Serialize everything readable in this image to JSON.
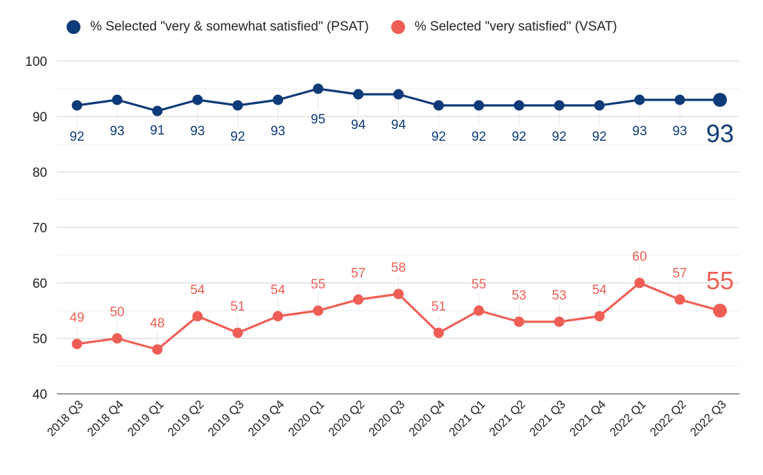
{
  "chart_data": {
    "type": "line",
    "categories": [
      "2018 Q3",
      "2018 Q4",
      "2019 Q1",
      "2019 Q2",
      "2019 Q3",
      "2019 Q4",
      "2020 Q1",
      "2020 Q2",
      "2020 Q3",
      "2020 Q4",
      "2021 Q1",
      "2021 Q2",
      "2021 Q3",
      "2021 Q4",
      "2022 Q1",
      "2022 Q2",
      "2022 Q3"
    ],
    "series": [
      {
        "name": "% Selected \"very & somewhat satisfied\" (PSAT)",
        "color": "#0d3a78",
        "values": [
          92,
          93,
          91,
          93,
          92,
          93,
          95,
          94,
          94,
          92,
          92,
          92,
          92,
          92,
          93,
          93,
          93
        ]
      },
      {
        "name": "% Selected \"very satisfied\" (VSAT)",
        "color": "#ef5e55",
        "values": [
          49,
          50,
          48,
          54,
          51,
          54,
          55,
          57,
          58,
          51,
          55,
          53,
          53,
          54,
          60,
          57,
          55
        ]
      }
    ],
    "ylim": [
      40,
      100
    ],
    "yticks": [
      40,
      50,
      60,
      70,
      80,
      90,
      100
    ],
    "grid": true,
    "legend": "top",
    "title": "",
    "xlabel": "",
    "ylabel": ""
  }
}
